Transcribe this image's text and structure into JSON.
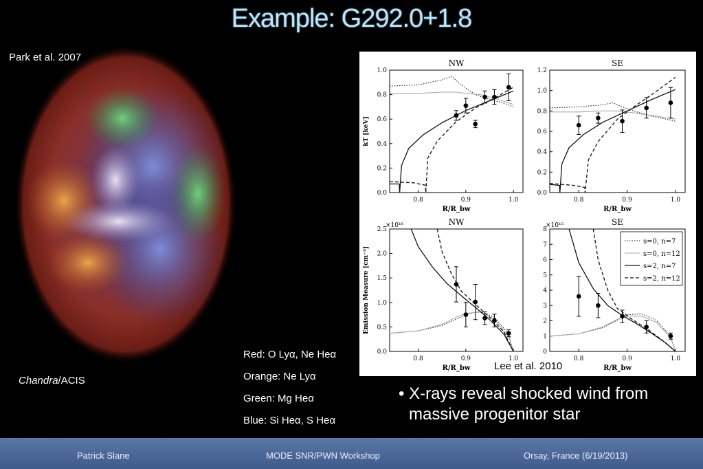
{
  "slide": {
    "title": "Example: G292.0+1.8",
    "image_credit": "Park et al.  2007",
    "instrument_name": "Chandra",
    "instrument_suffix": "/ACIS",
    "color_key": [
      "Red: O Lyα, Ne Heα",
      "Orange: Ne Lyα",
      "Green: Mg Heα",
      "Blue: Si Heα, S Heα"
    ],
    "plot_credit": "Lee et al. 2010",
    "bullet_line1": "• X-rays reveal shocked wind from",
    "bullet_line2": "massive progenitor star",
    "footer": {
      "left": "Patrick Slane",
      "center": "MODE SNR/PWN Workshop",
      "right": "Orsay, France  (6/19/2013)"
    }
  },
  "colors": {
    "title": "#bfe3f7",
    "footer_top": "#5b77a6",
    "footer_bottom": "#3f5a8c"
  },
  "chart_data": [
    {
      "type": "line",
      "title": "NW",
      "xlabel": "R/R_bw",
      "ylabel": "kT [keV]",
      "xlim": [
        0.74,
        1.02
      ],
      "ylim": [
        0,
        1.0
      ],
      "xticks": [
        0.8,
        0.9,
        1.0
      ],
      "yticks": [
        0.0,
        0.2,
        0.4,
        0.6,
        0.8,
        1.0
      ],
      "series": [
        {
          "name": "s=0, n=7",
          "style": "dotted",
          "x": [
            0.74,
            0.8,
            0.85,
            0.87,
            0.89,
            0.92,
            0.95,
            0.98,
            1.0
          ],
          "y": [
            0.87,
            0.88,
            0.92,
            0.95,
            0.88,
            0.8,
            0.76,
            0.73,
            0.7
          ]
        },
        {
          "name": "s=0, n=12",
          "style": "gray",
          "x": [
            0.74,
            0.8,
            0.85,
            0.88,
            0.9,
            0.93,
            0.96,
            1.0
          ],
          "y": [
            0.81,
            0.81,
            0.82,
            0.82,
            0.81,
            0.8,
            0.77,
            0.72
          ]
        },
        {
          "name": "s=2, n=7",
          "style": "solid",
          "x": [
            0.74,
            0.76,
            0.761,
            0.765,
            0.78,
            0.81,
            0.85,
            0.9,
            0.95,
            1.0
          ],
          "y": [
            0.07,
            0.07,
            0.0,
            0.22,
            0.36,
            0.47,
            0.57,
            0.67,
            0.75,
            0.83
          ]
        },
        {
          "name": "s=2, n=12",
          "style": "dashed",
          "x": [
            0.74,
            0.79,
            0.815,
            0.816,
            0.82,
            0.84,
            0.88,
            0.92,
            0.96,
            1.0
          ],
          "y": [
            0.09,
            0.08,
            0.06,
            0.0,
            0.28,
            0.42,
            0.58,
            0.69,
            0.77,
            0.86
          ]
        }
      ],
      "points": [
        {
          "x": 0.88,
          "y": 0.63,
          "err": 0.04
        },
        {
          "x": 0.9,
          "y": 0.71,
          "err": 0.06
        },
        {
          "x": 0.92,
          "y": 0.56,
          "err": 0.03
        },
        {
          "x": 0.94,
          "y": 0.78,
          "err": 0.05
        },
        {
          "x": 0.96,
          "y": 0.78,
          "err": 0.06
        },
        {
          "x": 0.99,
          "y": 0.86,
          "err": 0.11
        }
      ]
    },
    {
      "type": "line",
      "title": "SE",
      "xlabel": "R/R_bw",
      "ylabel": "",
      "xlim": [
        0.74,
        1.02
      ],
      "ylim": [
        0,
        1.2
      ],
      "xticks": [
        0.8,
        0.9,
        1.0
      ],
      "yticks": [
        0.0,
        0.2,
        0.4,
        0.6,
        0.8,
        1.0,
        1.2
      ],
      "series": [
        {
          "name": "s=0, n=7",
          "style": "dotted",
          "x": [
            0.74,
            0.8,
            0.85,
            0.87,
            0.89,
            0.92,
            0.95,
            0.98,
            1.0
          ],
          "y": [
            0.83,
            0.84,
            0.86,
            0.88,
            0.84,
            0.79,
            0.75,
            0.72,
            0.7
          ]
        },
        {
          "name": "s=0, n=12",
          "style": "gray",
          "x": [
            0.74,
            0.8,
            0.85,
            0.88,
            0.9,
            0.93,
            0.96,
            1.0
          ],
          "y": [
            0.79,
            0.79,
            0.8,
            0.8,
            0.79,
            0.77,
            0.75,
            0.72
          ]
        },
        {
          "name": "s=2, n=7",
          "style": "solid",
          "x": [
            0.74,
            0.76,
            0.761,
            0.765,
            0.78,
            0.81,
            0.85,
            0.9,
            0.95,
            1.0
          ],
          "y": [
            0.08,
            0.07,
            0.0,
            0.28,
            0.44,
            0.57,
            0.69,
            0.8,
            0.91,
            1.01
          ]
        },
        {
          "name": "s=2, n=12",
          "style": "dashed",
          "x": [
            0.74,
            0.79,
            0.812,
            0.813,
            0.82,
            0.84,
            0.88,
            0.92,
            0.96,
            1.0
          ],
          "y": [
            0.09,
            0.07,
            0.05,
            0.0,
            0.32,
            0.5,
            0.72,
            0.86,
            0.99,
            1.13
          ]
        }
      ],
      "points": [
        {
          "x": 0.8,
          "y": 0.66,
          "err": 0.09
        },
        {
          "x": 0.84,
          "y": 0.73,
          "err": 0.05
        },
        {
          "x": 0.89,
          "y": 0.7,
          "err": 0.11
        },
        {
          "x": 0.94,
          "y": 0.83,
          "err": 0.1
        },
        {
          "x": 0.99,
          "y": 0.88,
          "err": 0.15
        }
      ]
    },
    {
      "type": "line",
      "title": "NW",
      "xlabel": "R/R_bw",
      "ylabel": "Emission Measure [cm⁻³]",
      "yscale_label": "×10¹⁶",
      "xlim": [
        0.74,
        1.02
      ],
      "ylim": [
        0,
        2.5
      ],
      "xticks": [
        0.8,
        0.9,
        1.0
      ],
      "yticks": [
        0.0,
        0.5,
        1.0,
        1.5,
        2.0,
        2.5
      ],
      "series": [
        {
          "name": "s=0, n=7",
          "style": "dotted",
          "x": [
            0.74,
            0.8,
            0.85,
            0.88,
            0.9,
            0.93,
            0.96,
            0.99,
            1.0
          ],
          "y": [
            0.37,
            0.42,
            0.53,
            0.66,
            0.75,
            0.82,
            0.7,
            0.35,
            0.0
          ]
        },
        {
          "name": "s=0, n=12",
          "style": "gray",
          "x": [
            0.74,
            0.8,
            0.85,
            0.88,
            0.9,
            0.93,
            0.96,
            0.99,
            1.0
          ],
          "y": [
            0.37,
            0.42,
            0.55,
            0.7,
            0.78,
            0.8,
            0.66,
            0.3,
            0.0
          ]
        },
        {
          "name": "s=2, n=7",
          "style": "solid",
          "x": [
            0.785,
            0.8,
            0.83,
            0.86,
            0.89,
            0.92,
            0.95,
            0.98,
            1.0
          ],
          "y": [
            2.5,
            2.14,
            1.72,
            1.39,
            1.14,
            0.9,
            0.65,
            0.35,
            0.0
          ]
        },
        {
          "name": "s=2, n=12",
          "style": "dashed",
          "x": [
            0.84,
            0.85,
            0.87,
            0.89,
            0.92,
            0.95,
            0.98,
            1.0
          ],
          "y": [
            2.5,
            2.04,
            1.58,
            1.24,
            0.96,
            0.7,
            0.4,
            0.0
          ]
        }
      ],
      "points": [
        {
          "x": 0.88,
          "y": 1.37,
          "err": 0.36
        },
        {
          "x": 0.9,
          "y": 0.75,
          "err": 0.25
        },
        {
          "x": 0.92,
          "y": 1.01,
          "err": 0.36
        },
        {
          "x": 0.94,
          "y": 0.68,
          "err": 0.13
        },
        {
          "x": 0.96,
          "y": 0.63,
          "err": 0.13
        },
        {
          "x": 0.99,
          "y": 0.37,
          "err": 0.07
        }
      ]
    },
    {
      "type": "line",
      "title": "SE",
      "xlabel": "R/R_bw",
      "ylabel": "",
      "yscale_label": "×10¹⁵",
      "xlim": [
        0.74,
        1.02
      ],
      "ylim": [
        0,
        8
      ],
      "xticks": [
        0.8,
        0.9,
        1.0
      ],
      "yticks": [
        0,
        1,
        2,
        3,
        4,
        5,
        6,
        7,
        8
      ],
      "legend_position": "top-right",
      "series": [
        {
          "name": "s=0, n=7",
          "style": "dotted",
          "x": [
            0.74,
            0.8,
            0.85,
            0.88,
            0.9,
            0.93,
            0.96,
            0.99,
            1.0
          ],
          "y": [
            1.0,
            1.15,
            1.55,
            2.05,
            2.4,
            2.45,
            2.05,
            1.0,
            0.0
          ]
        },
        {
          "name": "s=0, n=12",
          "style": "gray",
          "x": [
            0.74,
            0.8,
            0.85,
            0.88,
            0.9,
            0.93,
            0.96,
            0.99,
            1.0
          ],
          "y": [
            1.0,
            1.15,
            1.6,
            2.1,
            2.3,
            2.3,
            1.9,
            0.9,
            0.0
          ]
        },
        {
          "name": "s=2, n=7",
          "style": "solid",
          "x": [
            0.78,
            0.8,
            0.83,
            0.86,
            0.89,
            0.92,
            0.95,
            0.98,
            1.0
          ],
          "y": [
            8.0,
            5.8,
            4.1,
            3.0,
            2.35,
            1.8,
            1.2,
            0.55,
            0.0
          ]
        },
        {
          "name": "s=2, n=12",
          "style": "dashed",
          "x": [
            0.83,
            0.84,
            0.86,
            0.88,
            0.91,
            0.94,
            0.97,
            1.0
          ],
          "y": [
            8.0,
            6.0,
            4.0,
            2.8,
            2.1,
            1.5,
            0.8,
            0.0
          ]
        }
      ],
      "points": [
        {
          "x": 0.8,
          "y": 3.6,
          "err": 1.3
        },
        {
          "x": 0.84,
          "y": 3.0,
          "err": 0.8
        },
        {
          "x": 0.89,
          "y": 2.3,
          "err": 0.4
        },
        {
          "x": 0.94,
          "y": 1.6,
          "err": 0.4
        },
        {
          "x": 0.99,
          "y": 1.0,
          "err": 0.2
        }
      ]
    }
  ]
}
